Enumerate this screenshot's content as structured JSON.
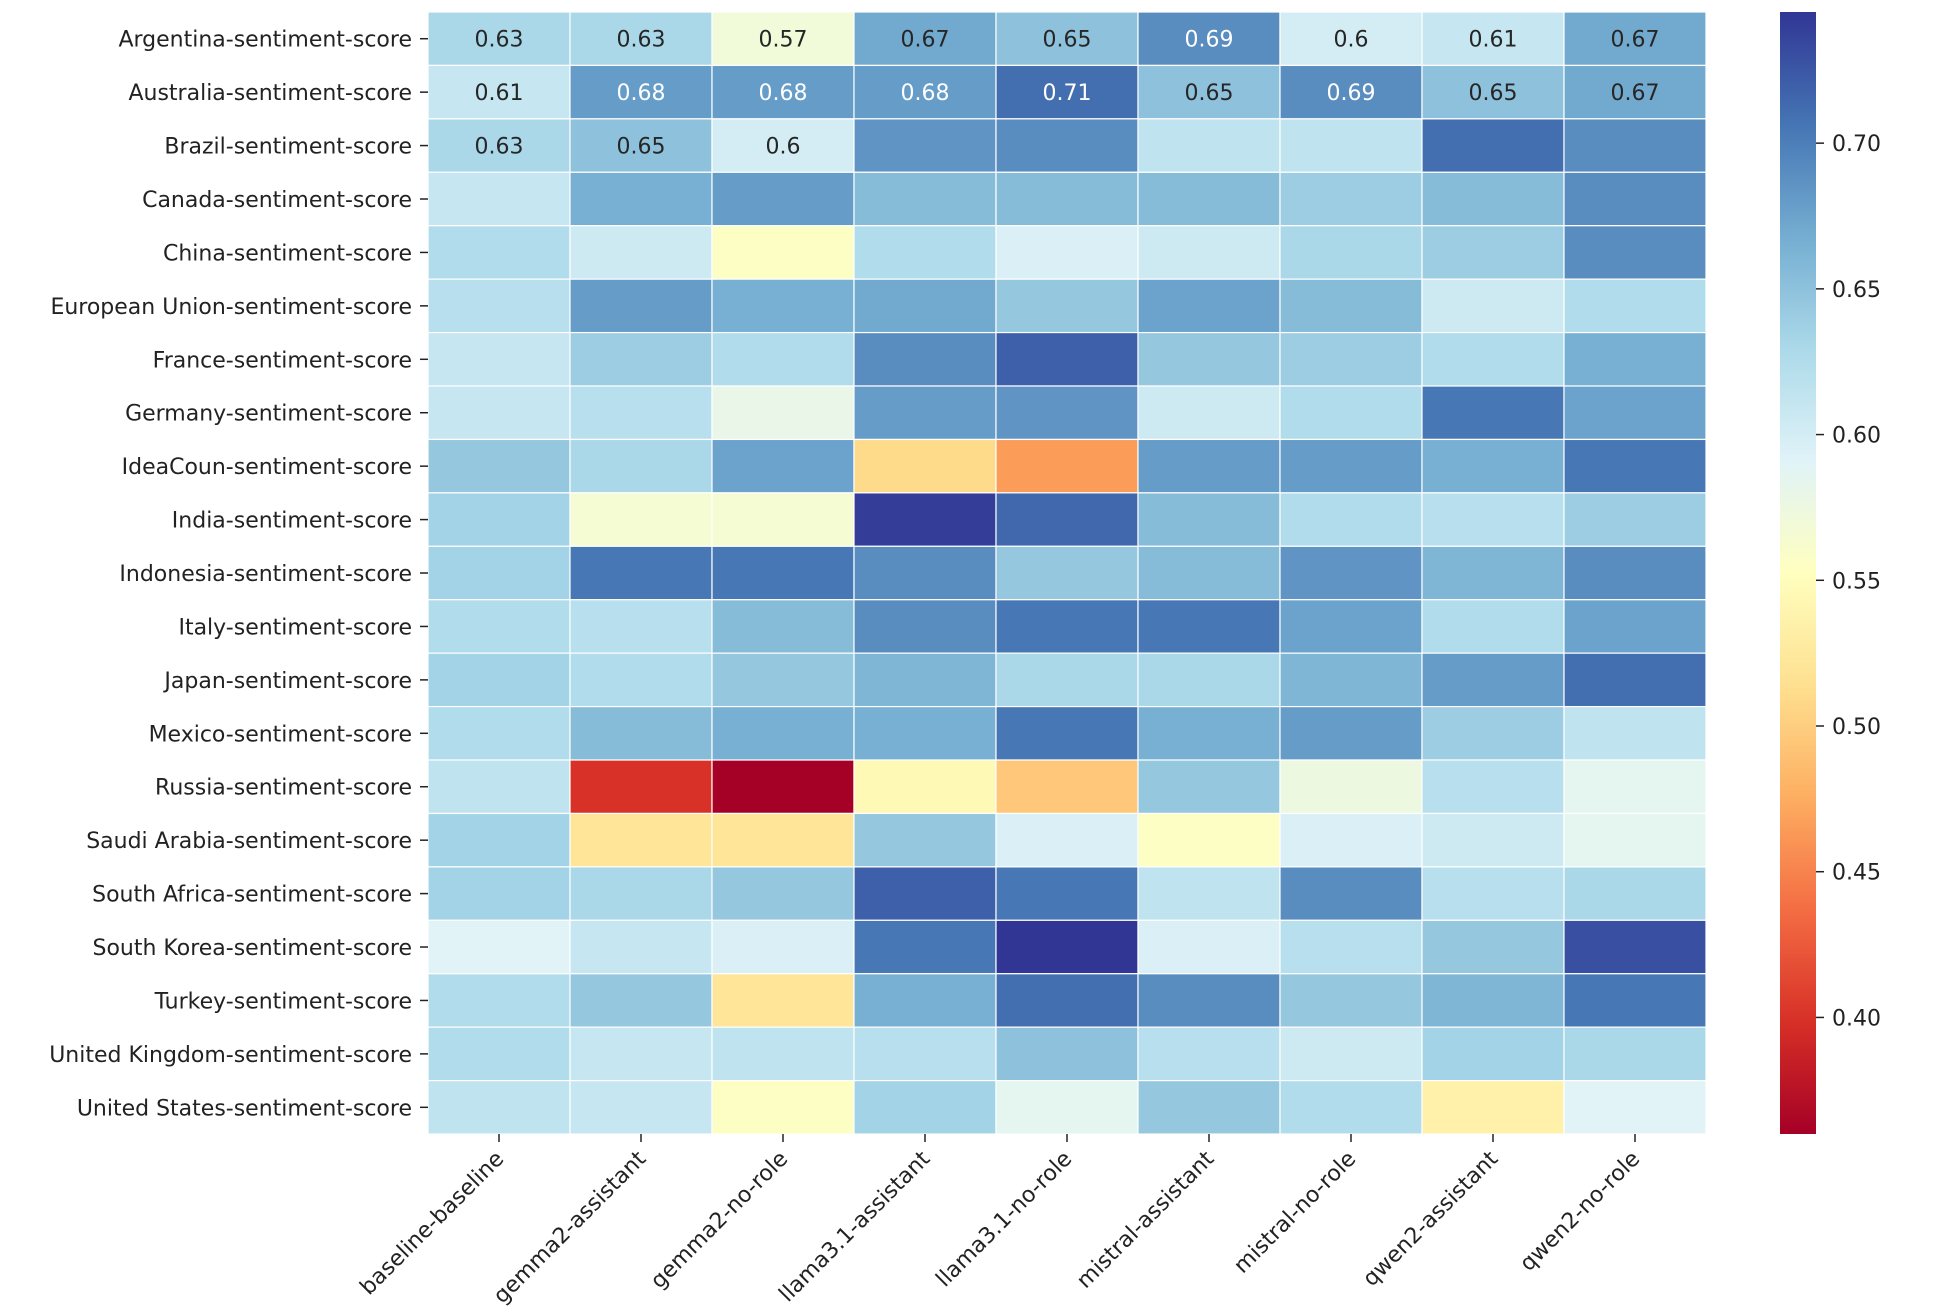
{
  "chart_data": {
    "type": "heatmap",
    "title": "",
    "xlabel": "",
    "ylabel": "",
    "rows": [
      "Argentina-sentiment-score",
      "Australia-sentiment-score",
      "Brazil-sentiment-score",
      "Canada-sentiment-score",
      "China-sentiment-score",
      "European Union-sentiment-score",
      "France-sentiment-score",
      "Germany-sentiment-score",
      "IdeaCoun-sentiment-score",
      "India-sentiment-score",
      "Indonesia-sentiment-score",
      "Italy-sentiment-score",
      "Japan-sentiment-score",
      "Mexico-sentiment-score",
      "Russia-sentiment-score",
      "Saudi Arabia-sentiment-score",
      "South Africa-sentiment-score",
      "South Korea-sentiment-score",
      "Turkey-sentiment-score",
      "United Kingdom-sentiment-score",
      "United States-sentiment-score"
    ],
    "columns": [
      "baseline-baseline",
      "gemma2-assistant",
      "gemma2-no-role",
      "llama3.1-assistant",
      "llama3.1-no-role",
      "mistral-assistant",
      "mistral-no-role",
      "qwen2-assistant",
      "qwen2-no-role"
    ],
    "values": [
      [
        0.63,
        0.63,
        0.57,
        0.67,
        0.65,
        0.69,
        0.6,
        0.61,
        0.67
      ],
      [
        0.61,
        0.68,
        0.68,
        0.68,
        0.71,
        0.65,
        0.69,
        0.65,
        0.67
      ],
      [
        0.63,
        0.65,
        0.6,
        0.685,
        0.69,
        0.615,
        0.615,
        0.71,
        0.69
      ],
      [
        0.61,
        0.665,
        0.68,
        0.655,
        0.655,
        0.655,
        0.64,
        0.655,
        0.69
      ],
      [
        0.625,
        0.605,
        0.555,
        0.625,
        0.595,
        0.605,
        0.63,
        0.64,
        0.69
      ],
      [
        0.62,
        0.68,
        0.665,
        0.67,
        0.645,
        0.675,
        0.655,
        0.605,
        0.625
      ],
      [
        0.61,
        0.64,
        0.625,
        0.69,
        0.72,
        0.645,
        0.64,
        0.625,
        0.665
      ],
      [
        0.61,
        0.62,
        0.58,
        0.68,
        0.685,
        0.605,
        0.625,
        0.705,
        0.675
      ],
      [
        0.645,
        0.63,
        0.675,
        0.51,
        0.465,
        0.68,
        0.68,
        0.665,
        0.705
      ],
      [
        0.635,
        0.565,
        0.565,
        0.74,
        0.715,
        0.655,
        0.625,
        0.62,
        0.64
      ],
      [
        0.635,
        0.705,
        0.705,
        0.69,
        0.645,
        0.655,
        0.685,
        0.66,
        0.69
      ],
      [
        0.625,
        0.62,
        0.655,
        0.69,
        0.705,
        0.705,
        0.675,
        0.625,
        0.675
      ],
      [
        0.635,
        0.625,
        0.645,
        0.66,
        0.63,
        0.63,
        0.66,
        0.68,
        0.71
      ],
      [
        0.625,
        0.655,
        0.665,
        0.665,
        0.705,
        0.665,
        0.68,
        0.64,
        0.615
      ],
      [
        0.615,
        0.4,
        0.36,
        0.545,
        0.495,
        0.645,
        0.575,
        0.62,
        0.585
      ],
      [
        0.635,
        0.52,
        0.52,
        0.645,
        0.595,
        0.555,
        0.595,
        0.605,
        0.585
      ],
      [
        0.635,
        0.63,
        0.645,
        0.72,
        0.705,
        0.615,
        0.69,
        0.62,
        0.63
      ],
      [
        0.59,
        0.61,
        0.595,
        0.705,
        0.745,
        0.595,
        0.62,
        0.645,
        0.73
      ],
      [
        0.625,
        0.645,
        0.52,
        0.665,
        0.71,
        0.69,
        0.645,
        0.66,
        0.705
      ],
      [
        0.625,
        0.61,
        0.615,
        0.62,
        0.65,
        0.62,
        0.605,
        0.635,
        0.63
      ],
      [
        0.615,
        0.61,
        0.555,
        0.635,
        0.585,
        0.645,
        0.625,
        0.535,
        0.59
      ]
    ],
    "annotated_rows": 3,
    "annotations": [
      [
        "0.63",
        "0.63",
        "0.57",
        "0.67",
        "0.65",
        "0.69",
        "0.6",
        "0.61",
        "0.67"
      ],
      [
        "0.61",
        "0.68",
        "0.68",
        "0.68",
        "0.71",
        "0.65",
        "0.69",
        "0.65",
        "0.67"
      ],
      [
        "0.63",
        "0.65",
        "0.6"
      ]
    ],
    "vmin": 0.36,
    "vmax": 0.745,
    "colormap": "RdYlBu",
    "colorbar_ticks": [
      0.4,
      0.45,
      0.5,
      0.55,
      0.6,
      0.65,
      0.7
    ],
    "colorbar_tick_labels": [
      "0.40",
      "0.45",
      "0.50",
      "0.55",
      "0.60",
      "0.65",
      "0.70"
    ],
    "colormap_stops": [
      "#a50026",
      "#d73027",
      "#f46d43",
      "#fdae61",
      "#fee090",
      "#ffffbf",
      "#e0f3f8",
      "#abd9e9",
      "#74add1",
      "#4575b4",
      "#313695"
    ]
  }
}
